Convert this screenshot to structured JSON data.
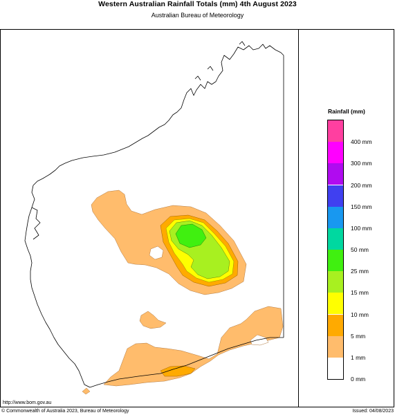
{
  "header": {
    "title": "Western Australian Rainfall Totals (mm) 4th August 2023",
    "subtitle": "Australian Bureau of Meteorology"
  },
  "legend": {
    "title": "Rainfall (mm)",
    "bands": [
      {
        "color": "#ff3fa0"
      },
      {
        "color": "#ff00ff"
      },
      {
        "color": "#b00bf0"
      },
      {
        "color": "#4040f0"
      },
      {
        "color": "#1898f0"
      },
      {
        "color": "#00d8a0"
      },
      {
        "color": "#40f010"
      },
      {
        "color": "#a8f020"
      },
      {
        "color": "#ffff00"
      },
      {
        "color": "#ffaa00"
      },
      {
        "color": "#ffbc6c"
      },
      {
        "color": "#ffffff"
      }
    ],
    "labels": [
      "400 mm",
      "300 mm",
      "200 mm",
      "150 mm",
      "100 mm",
      "50 mm",
      "25 mm",
      "15 mm",
      "10 mm",
      "5 mm",
      "1 mm",
      "0 mm"
    ]
  },
  "colors": {
    "band_1": "#ffbc6c",
    "band_5": "#ffaa00",
    "band_10": "#ffff00",
    "band_15": "#a8f020",
    "band_25": "#40f010",
    "coastline": "#000000"
  },
  "footer": {
    "url": "http://www.bom.gov.au",
    "copyright": "© Commonwealth of Australia 2023, Bureau of Meteorology",
    "issued": "Issued: 04/08/2023"
  }
}
